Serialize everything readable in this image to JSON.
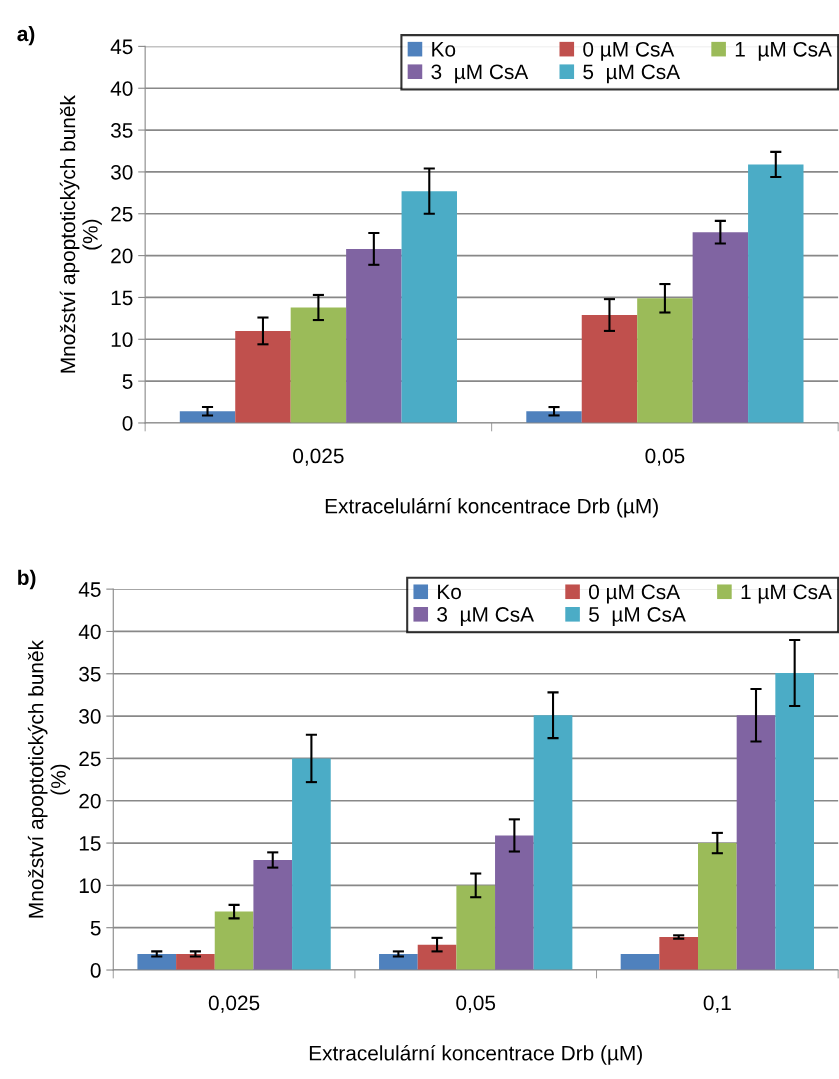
{
  "chart_data": [
    {
      "type": "bar",
      "annotations": [
        "a)"
      ],
      "xlabel": "Extracelulární koncentrace Drb (µM)",
      "ylabel": "Množství apoptotických buněk\n(%)",
      "categories": [
        "0,025",
        "0,05"
      ],
      "series": [
        {
          "name": "Ko",
          "color": "#4f81bd",
          "values": [
            1.4,
            1.4
          ],
          "errors": [
            0.5,
            0.5
          ]
        },
        {
          "name": "0 µM CsA",
          "color": "#c0504d",
          "values": [
            11,
            12.9
          ],
          "errors": [
            1.6,
            1.9
          ]
        },
        {
          "name": "1  µM CsA",
          "color": "#9bbb59",
          "values": [
            13.8,
            14.9
          ],
          "errors": [
            1.5,
            1.7
          ]
        },
        {
          "name": "3  µM CsA",
          "color": "#8064a2",
          "values": [
            20.8,
            22.8
          ],
          "errors": [
            1.9,
            1.35
          ]
        },
        {
          "name": "5  µM CsA",
          "color": "#4bacc6",
          "values": [
            27.7,
            30.9
          ],
          "errors": [
            2.7,
            1.5
          ]
        }
      ],
      "ylim": [
        0,
        45
      ],
      "yticks": [
        0,
        5,
        10,
        15,
        20,
        25,
        30,
        35,
        40,
        45
      ],
      "grid": "y",
      "legend": "top right"
    },
    {
      "type": "bar",
      "annotations": [
        "b)"
      ],
      "xlabel": "Extracelulární koncentrace Drb (µM)",
      "ylabel": "Množství apoptotických buněk\n(%)",
      "categories": [
        "0,025",
        "0,05",
        "0,1"
      ],
      "series": [
        {
          "name": "Ko",
          "color": "#4f81bd",
          "values": [
            1.9,
            1.9,
            1.9
          ],
          "errors": [
            0.3,
            0.3,
            null
          ]
        },
        {
          "name": "0 µM CsA",
          "color": "#c0504d",
          "values": [
            1.9,
            3.0,
            3.9
          ],
          "errors": [
            0.3,
            0.8,
            0.2
          ]
        },
        {
          "name": "1 µM CsA",
          "color": "#9bbb59",
          "values": [
            6.9,
            10.0,
            15.0
          ],
          "errors": [
            0.8,
            1.4,
            1.2
          ]
        },
        {
          "name": "3  µM CsA",
          "color": "#8064a2",
          "values": [
            13.0,
            15.9,
            30.1
          ],
          "errors": [
            0.9,
            1.9,
            3.1
          ]
        },
        {
          "name": "5  µM CsA",
          "color": "#4bacc6",
          "values": [
            25.0,
            30.1,
            35.1
          ],
          "errors": [
            2.8,
            2.7,
            3.9
          ]
        }
      ],
      "ylim": [
        0,
        45
      ],
      "yticks": [
        0,
        5,
        10,
        15,
        20,
        25,
        30,
        35,
        40,
        45
      ],
      "grid": "y",
      "legend": "top right"
    }
  ]
}
